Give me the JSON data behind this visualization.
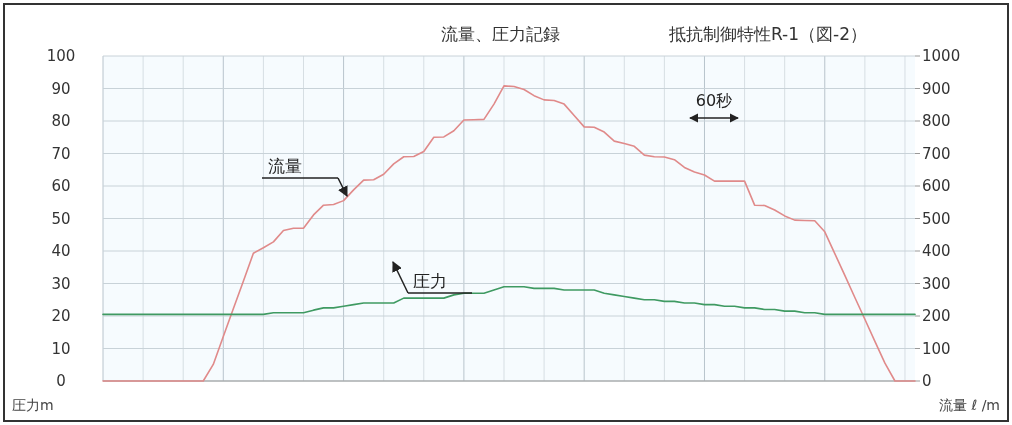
{
  "chart_data": {
    "type": "line",
    "title": "流量、圧力記録",
    "subtitle": "抵抗制御特性R-1（図-2）",
    "ylabel": "圧力m",
    "y2label": "流量 ℓ /m",
    "annotations": [
      "60秒"
    ],
    "categories": [
      null,
      null,
      null,
      null,
      null,
      null,
      null,
      null,
      null,
      null,
      null,
      null,
      null,
      null,
      null,
      null,
      null,
      null,
      null,
      null,
      null,
      null,
      null,
      null,
      null,
      null,
      null,
      null,
      null,
      null,
      null,
      null,
      null,
      null,
      null,
      null,
      null,
      null,
      null,
      null,
      null,
      null,
      null,
      null,
      null,
      null,
      null,
      null,
      null,
      null,
      null,
      null,
      null,
      null,
      null,
      null,
      null,
      null,
      null,
      null,
      null,
      null,
      null,
      null,
      null,
      null,
      null,
      null,
      null,
      null,
      null,
      null,
      null,
      null,
      null,
      null,
      null,
      null,
      null,
      null,
      null,
      null
    ],
    "ylim": [
      0,
      100
    ],
    "yticks": [
      0,
      10,
      20,
      30,
      40,
      50,
      60,
      70,
      80,
      90,
      100
    ],
    "y2lim": [
      0,
      1000
    ],
    "y2ticks": [
      0,
      100,
      200,
      300,
      400,
      500,
      600,
      700,
      800,
      900,
      1000
    ],
    "grid": true,
    "marker": "none",
    "line_style": "solid",
    "series": [
      {
        "name": "流量",
        "color": "#e08a8a",
        "axis": "y2",
        "values": [
          0,
          0,
          0,
          0,
          0,
          0,
          0,
          0,
          0,
          0,
          0,
          51,
          137,
          222,
          307,
          393,
          410,
          428,
          463,
          470,
          470,
          511,
          541,
          543,
          555,
          588,
          618,
          619,
          636,
          668,
          690,
          691,
          706,
          750,
          751,
          770,
          803,
          804,
          805,
          852,
          908,
          906,
          897,
          878,
          865,
          863,
          852,
          817,
          782,
          781,
          766,
          738,
          731,
          722,
          695,
          690,
          689,
          681,
          657,
          643,
          634,
          615,
          615,
          615,
          615,
          541,
          540,
          526,
          508,
          495,
          494,
          493,
          459,
          392,
          325,
          257,
          190,
          122,
          55,
          0,
          0,
          0
        ]
      },
      {
        "name": "圧力",
        "color": "#3f9a62",
        "axis": "y",
        "values": [
          20.5,
          20.5,
          20.5,
          20.5,
          20.5,
          20.5,
          20.5,
          20.5,
          20.5,
          20.5,
          20.5,
          20.5,
          20.5,
          20.5,
          20.5,
          20.5,
          20.5,
          21,
          21,
          21,
          21,
          21.8,
          22.5,
          22.5,
          23,
          23.5,
          24,
          24,
          24,
          24,
          25.5,
          25.5,
          25.5,
          25.5,
          25.5,
          26.5,
          27,
          27,
          27,
          28,
          29,
          29,
          29,
          28.5,
          28.5,
          28.5,
          28,
          28,
          28,
          28,
          27,
          26.5,
          26,
          25.5,
          25,
          25,
          24.5,
          24.5,
          24,
          24,
          23.5,
          23.5,
          23,
          23,
          22.5,
          22.5,
          22,
          22,
          21.5,
          21.5,
          21,
          21,
          20.5,
          20.5,
          20.5,
          20.5,
          20.5,
          20.5,
          20.5,
          20.5,
          20.5,
          20.5
        ]
      }
    ]
  }
}
